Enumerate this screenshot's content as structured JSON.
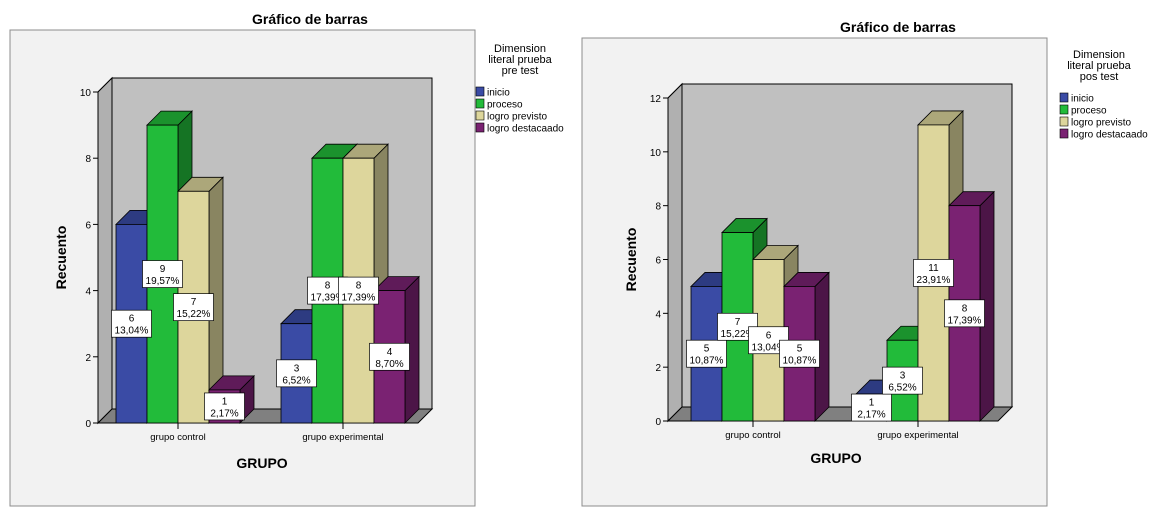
{
  "chart_data": [
    {
      "type": "bar",
      "title": "Gráfico de barras",
      "xlabel": "GRUPO",
      "ylabel": "Recuento",
      "ylim": [
        0,
        10
      ],
      "yticks": [
        "0",
        "2",
        "4",
        "6",
        "8",
        "10"
      ],
      "categories": [
        "grupo control",
        "grupo experimental"
      ],
      "legend_title": [
        "Dimension",
        "literal  prueba",
        "pre  test"
      ],
      "legend_position": "top-right",
      "series": [
        {
          "name": "inicio",
          "color": "#3a4ba5",
          "values": [
            6,
            3
          ],
          "labels": [
            [
              "6",
              "13,04%"
            ],
            [
              "3",
              "6,52%"
            ]
          ]
        },
        {
          "name": "proceso",
          "color": "#22bb3a",
          "values": [
            9,
            8
          ],
          "labels": [
            [
              "9",
              "19,57%"
            ],
            [
              "8",
              "17,39%"
            ]
          ]
        },
        {
          "name": "logro previsto",
          "color": "#ddd69c",
          "values": [
            7,
            8
          ],
          "labels": [
            [
              "7",
              "15,22%"
            ],
            [
              "8",
              "17,39%"
            ]
          ]
        },
        {
          "name": "logro destacaado",
          "color": "#7a2272",
          "values": [
            1,
            4
          ],
          "labels": [
            [
              "1",
              "2,17%"
            ],
            [
              "4",
              "8,70%"
            ]
          ]
        }
      ]
    },
    {
      "type": "bar",
      "title": "Gráfico de barras",
      "xlabel": "GRUPO",
      "ylabel": "Recuento",
      "ylim": [
        0,
        12
      ],
      "yticks": [
        "0",
        "2",
        "4",
        "6",
        "8",
        "10",
        "12"
      ],
      "categories": [
        "grupo control",
        "grupo experimental"
      ],
      "legend_title": [
        "Dimension",
        "literal  prueba",
        "pos test"
      ],
      "legend_position": "top-right",
      "series": [
        {
          "name": "inicio",
          "color": "#3a4ba5",
          "values": [
            5,
            1
          ],
          "labels": [
            [
              "5",
              "10,87%"
            ],
            [
              "1",
              "2,17%"
            ]
          ]
        },
        {
          "name": "proceso",
          "color": "#22bb3a",
          "values": [
            7,
            3
          ],
          "labels": [
            [
              "7",
              "15,22%"
            ],
            [
              "3",
              "6,52%"
            ]
          ]
        },
        {
          "name": "logro previsto",
          "color": "#ddd69c",
          "values": [
            6,
            11
          ],
          "labels": [
            [
              "6",
              "13,04%"
            ],
            [
              "11",
              "23,91%"
            ]
          ]
        },
        {
          "name": "logro destacaado",
          "color": "#7a2272",
          "values": [
            5,
            8
          ],
          "labels": [
            [
              "5",
              "10,87%"
            ],
            [
              "8",
              "17,39%"
            ]
          ]
        }
      ]
    }
  ]
}
